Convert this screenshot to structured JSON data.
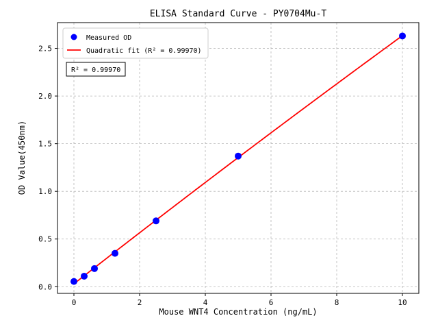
{
  "chart_data": {
    "type": "scatter",
    "title": "ELISA Standard Curve - PY0704Mu-T",
    "xlabel": "Mouse WNT4 Concentration (ng/mL)",
    "ylabel": "OD Value(450nm)",
    "points_label": "Measured OD",
    "fit_label": "Quadratic fit (R² = 0.99970)",
    "annotation": "R² = 0.99970",
    "fit_type": "quadratic",
    "r_squared": "0.99970",
    "x": [
      0,
      0.3125,
      0.625,
      1.25,
      2.5,
      5,
      10
    ],
    "y": [
      0.055,
      0.11,
      0.19,
      0.35,
      0.69,
      1.37,
      2.63
    ],
    "xticks": [
      0,
      2,
      4,
      6,
      8,
      10
    ],
    "yticks": [
      0,
      0.5,
      1,
      1.5,
      2,
      2.5
    ],
    "xlim": [
      -0.5,
      10.5
    ],
    "ylim": [
      -0.07,
      2.77
    ],
    "grid": true,
    "legend_position": "upper left",
    "colors": {
      "points": "#0000ff",
      "fit": "#ff0000",
      "grid": "#b5b5b5",
      "frame": "#000000"
    }
  }
}
